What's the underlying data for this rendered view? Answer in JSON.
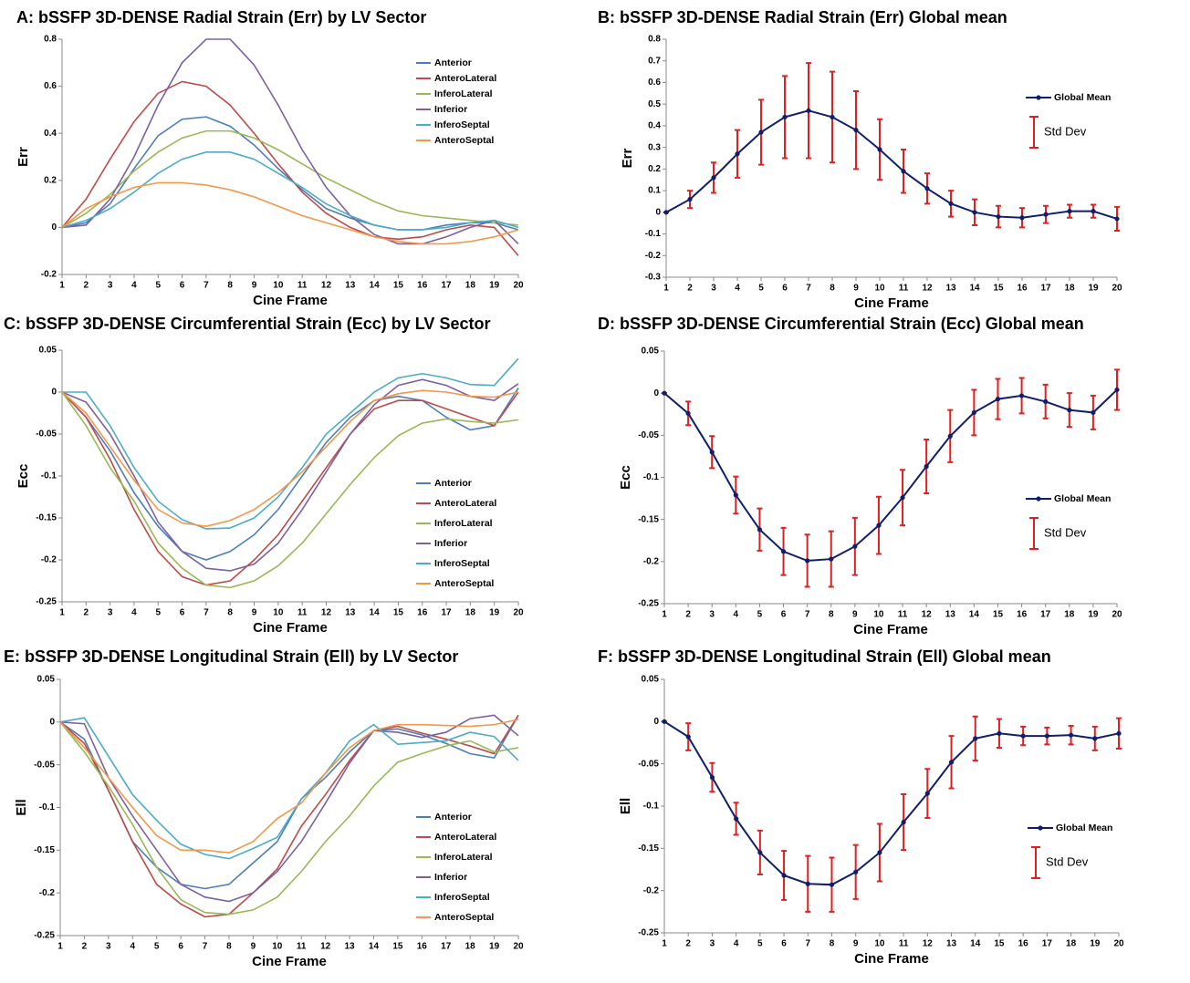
{
  "chart_data": [
    {
      "type": "line",
      "title": "A: bSSFP 3D-DENSE Radial Strain (Err) by LV Sector",
      "xlabel": "Cine Frame",
      "ylabel": "Err",
      "x": [
        1,
        2,
        3,
        4,
        5,
        6,
        7,
        8,
        9,
        10,
        11,
        12,
        13,
        14,
        15,
        16,
        17,
        18,
        19,
        20
      ],
      "xlim": [
        1,
        20
      ],
      "xticks": [
        1,
        2,
        3,
        4,
        5,
        6,
        7,
        8,
        9,
        10,
        11,
        12,
        13,
        14,
        15,
        16,
        17,
        18,
        19,
        20
      ],
      "ylim": [
        -0.2,
        0.8
      ],
      "yticks": [
        -0.2,
        0,
        0.2,
        0.4,
        0.6,
        0.8
      ],
      "grid": false,
      "legend": "upper right",
      "series": [
        {
          "name": "Anterior",
          "color": "#4a7ebb",
          "values": [
            0,
            0.02,
            0.1,
            0.25,
            0.39,
            0.46,
            0.47,
            0.43,
            0.35,
            0.25,
            0.16,
            0.08,
            0.04,
            0.01,
            -0.01,
            -0.01,
            0.01,
            0.02,
            0.02,
            -0.01
          ]
        },
        {
          "name": "AnteroLateral",
          "color": "#be4b48",
          "values": [
            0,
            0.12,
            0.29,
            0.45,
            0.57,
            0.62,
            0.6,
            0.52,
            0.4,
            0.27,
            0.15,
            0.06,
            0.0,
            -0.04,
            -0.05,
            -0.04,
            -0.01,
            0.01,
            0.0,
            -0.12
          ]
        },
        {
          "name": "InferoLateral",
          "color": "#98b954",
          "values": [
            0,
            0.06,
            0.14,
            0.24,
            0.32,
            0.38,
            0.41,
            0.41,
            0.38,
            0.33,
            0.27,
            0.21,
            0.16,
            0.11,
            0.07,
            0.05,
            0.04,
            0.03,
            0.02,
            0.01
          ]
        },
        {
          "name": "Inferior",
          "color": "#7d60a0",
          "values": [
            0,
            0.01,
            0.12,
            0.3,
            0.52,
            0.7,
            0.8,
            0.8,
            0.69,
            0.52,
            0.33,
            0.17,
            0.05,
            -0.03,
            -0.07,
            -0.07,
            -0.04,
            0.0,
            0.03,
            -0.07
          ]
        },
        {
          "name": "InferoSeptal",
          "color": "#4bacc6",
          "values": [
            0,
            0.03,
            0.08,
            0.15,
            0.23,
            0.29,
            0.32,
            0.32,
            0.29,
            0.23,
            0.17,
            0.1,
            0.05,
            0.01,
            -0.01,
            -0.01,
            0.0,
            0.02,
            0.03,
            0.0
          ]
        },
        {
          "name": "AnteroSeptal",
          "color": "#f79646",
          "values": [
            0,
            0.08,
            0.13,
            0.17,
            0.19,
            0.19,
            0.18,
            0.16,
            0.13,
            0.09,
            0.05,
            0.02,
            -0.01,
            -0.04,
            -0.06,
            -0.07,
            -0.07,
            -0.06,
            -0.04,
            -0.01
          ]
        }
      ]
    },
    {
      "type": "errorline",
      "title": "B: bSSFP 3D-DENSE Radial Strain (Err) Global mean",
      "xlabel": "Cine Frame",
      "ylabel": "Err",
      "x": [
        1,
        2,
        3,
        4,
        5,
        6,
        7,
        8,
        9,
        10,
        11,
        12,
        13,
        14,
        15,
        16,
        17,
        18,
        19,
        20
      ],
      "xlim": [
        1,
        20
      ],
      "xticks": [
        1,
        2,
        3,
        4,
        5,
        6,
        7,
        8,
        9,
        10,
        11,
        12,
        13,
        14,
        15,
        16,
        17,
        18,
        19,
        20
      ],
      "ylim": [
        -0.3,
        0.8
      ],
      "yticks": [
        -0.3,
        -0.2,
        -0.1,
        0,
        0.1,
        0.2,
        0.3,
        0.4,
        0.5,
        0.6,
        0.7,
        0.8
      ],
      "grid": false,
      "legend": "upper right",
      "series": [
        {
          "name": "Global Mean",
          "color": "#0f1f6e",
          "error_name": "Std Dev",
          "error_color": "#e02020",
          "values": [
            0,
            0.06,
            0.16,
            0.27,
            0.37,
            0.44,
            0.47,
            0.44,
            0.38,
            0.29,
            0.19,
            0.11,
            0.04,
            0,
            -0.02,
            -0.025,
            -0.01,
            0.005,
            0.005,
            -0.03
          ],
          "errors": [
            0,
            0.04,
            0.07,
            0.11,
            0.15,
            0.19,
            0.22,
            0.21,
            0.18,
            0.14,
            0.1,
            0.07,
            0.06,
            0.06,
            0.05,
            0.045,
            0.04,
            0.03,
            0.03,
            0.055
          ]
        }
      ]
    },
    {
      "type": "line",
      "title": "C: bSSFP 3D-DENSE Circumferential Strain (Ecc) by LV Sector",
      "xlabel": "Cine Frame",
      "ylabel": "Ecc",
      "x": [
        1,
        2,
        3,
        4,
        5,
        6,
        7,
        8,
        9,
        10,
        11,
        12,
        13,
        14,
        15,
        16,
        17,
        18,
        19,
        20
      ],
      "xlim": [
        1,
        20
      ],
      "xticks": [
        1,
        2,
        3,
        4,
        5,
        6,
        7,
        8,
        9,
        10,
        11,
        12,
        13,
        14,
        15,
        16,
        17,
        18,
        19,
        20
      ],
      "ylim": [
        -0.25,
        0.05
      ],
      "yticks": [
        -0.25,
        -0.2,
        -0.15,
        -0.1,
        -0.05,
        0,
        0.05
      ],
      "grid": false,
      "legend": "lower right",
      "series": [
        {
          "name": "Anterior",
          "color": "#4a7ebb",
          "values": [
            0,
            -0.03,
            -0.07,
            -0.12,
            -0.16,
            -0.19,
            -0.2,
            -0.19,
            -0.17,
            -0.14,
            -0.1,
            -0.06,
            -0.03,
            -0.01,
            -0.005,
            -0.01,
            -0.03,
            -0.045,
            -0.04,
            0.005
          ]
        },
        {
          "name": "AnteroLateral",
          "color": "#be4b48",
          "values": [
            0,
            -0.03,
            -0.08,
            -0.14,
            -0.19,
            -0.22,
            -0.23,
            -0.225,
            -0.2,
            -0.17,
            -0.13,
            -0.09,
            -0.05,
            -0.02,
            -0.01,
            -0.01,
            -0.02,
            -0.03,
            -0.04,
            0
          ]
        },
        {
          "name": "InferoLateral",
          "color": "#98b954",
          "values": [
            0,
            -0.04,
            -0.09,
            -0.13,
            -0.18,
            -0.21,
            -0.23,
            -0.233,
            -0.225,
            -0.207,
            -0.18,
            -0.145,
            -0.11,
            -0.078,
            -0.052,
            -0.037,
            -0.032,
            -0.035,
            -0.037,
            -0.033
          ]
        },
        {
          "name": "Inferior",
          "color": "#7d60a0",
          "values": [
            0,
            -0.012,
            -0.05,
            -0.1,
            -0.155,
            -0.19,
            -0.21,
            -0.213,
            -0.205,
            -0.18,
            -0.14,
            -0.095,
            -0.05,
            -0.015,
            0.008,
            0.015,
            0.008,
            -0.005,
            -0.01,
            0.01
          ]
        },
        {
          "name": "InferoSeptal",
          "color": "#4bacc6",
          "values": [
            0,
            0,
            -0.04,
            -0.09,
            -0.13,
            -0.152,
            -0.163,
            -0.162,
            -0.15,
            -0.125,
            -0.09,
            -0.05,
            -0.025,
            0,
            0.017,
            0.022,
            0.017,
            0.009,
            0.008,
            0.04
          ]
        },
        {
          "name": "AnteroSeptal",
          "color": "#f79646",
          "values": [
            0,
            -0.025,
            -0.065,
            -0.105,
            -0.14,
            -0.156,
            -0.16,
            -0.153,
            -0.14,
            -0.12,
            -0.095,
            -0.065,
            -0.035,
            -0.01,
            -0.002,
            0.002,
            0,
            -0.005,
            -0.006,
            0
          ]
        }
      ]
    },
    {
      "type": "errorline",
      "title": "D: bSSFP 3D-DENSE Circumferential Strain (Ecc) Global mean",
      "xlabel": "Cine Frame",
      "ylabel": "Ecc",
      "x": [
        1,
        2,
        3,
        4,
        5,
        6,
        7,
        8,
        9,
        10,
        11,
        12,
        13,
        14,
        15,
        16,
        17,
        18,
        19,
        20
      ],
      "xlim": [
        1,
        20
      ],
      "xticks": [
        1,
        2,
        3,
        4,
        5,
        6,
        7,
        8,
        9,
        10,
        11,
        12,
        13,
        14,
        15,
        16,
        17,
        18,
        19,
        20
      ],
      "ylim": [
        -0.25,
        0.05
      ],
      "yticks": [
        -0.25,
        -0.2,
        -0.15,
        -0.1,
        -0.05,
        0,
        0.05
      ],
      "grid": false,
      "legend": "lower right",
      "series": [
        {
          "name": "Global Mean",
          "color": "#0f1f6e",
          "error_name": "Std Dev",
          "error_color": "#e02020",
          "values": [
            0,
            -0.024,
            -0.07,
            -0.121,
            -0.162,
            -0.188,
            -0.199,
            -0.197,
            -0.182,
            -0.157,
            -0.124,
            -0.087,
            -0.051,
            -0.023,
            -0.007,
            -0.003,
            -0.01,
            -0.02,
            -0.023,
            0.004
          ],
          "errors": [
            0,
            0.014,
            0.019,
            0.022,
            0.025,
            0.028,
            0.031,
            0.033,
            0.034,
            0.034,
            0.033,
            0.032,
            0.031,
            0.027,
            0.024,
            0.021,
            0.02,
            0.02,
            0.02,
            0.024
          ]
        }
      ]
    },
    {
      "type": "line",
      "title": "E: bSSFP 3D-DENSE Longitudinal Strain (Ell) by LV Sector",
      "xlabel": "Cine Frame",
      "ylabel": "Ell",
      "x": [
        1,
        2,
        3,
        4,
        5,
        6,
        7,
        8,
        9,
        10,
        11,
        12,
        13,
        14,
        15,
        16,
        17,
        18,
        19,
        20
      ],
      "xlim": [
        1,
        20
      ],
      "xticks": [
        1,
        2,
        3,
        4,
        5,
        6,
        7,
        8,
        9,
        10,
        11,
        12,
        13,
        14,
        15,
        16,
        17,
        18,
        19,
        20
      ],
      "ylim": [
        -0.25,
        0.05
      ],
      "yticks": [
        -0.25,
        -0.2,
        -0.15,
        -0.1,
        -0.05,
        0,
        0.05
      ],
      "grid": false,
      "legend": "lower right",
      "series": [
        {
          "name": "Anterior",
          "color": "#4a7ebb",
          "values": [
            0,
            -0.02,
            -0.08,
            -0.14,
            -0.17,
            -0.19,
            -0.195,
            -0.19,
            -0.165,
            -0.14,
            -0.09,
            -0.065,
            -0.035,
            -0.01,
            -0.008,
            -0.015,
            -0.025,
            -0.037,
            -0.042,
            0.008
          ]
        },
        {
          "name": "AnteroLateral",
          "color": "#be4b48",
          "values": [
            0,
            -0.025,
            -0.08,
            -0.14,
            -0.19,
            -0.213,
            -0.228,
            -0.225,
            -0.2,
            -0.172,
            -0.122,
            -0.085,
            -0.045,
            -0.01,
            -0.005,
            -0.013,
            -0.02,
            -0.028,
            -0.037,
            0.008
          ]
        },
        {
          "name": "InferoLateral",
          "color": "#98b954",
          "values": [
            0,
            -0.035,
            -0.075,
            -0.12,
            -0.17,
            -0.208,
            -0.223,
            -0.225,
            -0.22,
            -0.205,
            -0.175,
            -0.14,
            -0.11,
            -0.075,
            -0.047,
            -0.037,
            -0.028,
            -0.022,
            -0.035,
            -0.03
          ]
        },
        {
          "name": "Inferior",
          "color": "#7d60a0",
          "values": [
            0,
            -0.002,
            -0.065,
            -0.11,
            -0.15,
            -0.19,
            -0.205,
            -0.21,
            -0.2,
            -0.175,
            -0.14,
            -0.095,
            -0.048,
            -0.01,
            -0.012,
            -0.018,
            -0.012,
            0.004,
            0.008,
            -0.016
          ]
        },
        {
          "name": "InferoSeptal",
          "color": "#4bacc6",
          "values": [
            0,
            0.005,
            -0.04,
            -0.085,
            -0.115,
            -0.143,
            -0.155,
            -0.16,
            -0.148,
            -0.135,
            -0.09,
            -0.06,
            -0.022,
            -0.003,
            -0.026,
            -0.024,
            -0.022,
            -0.012,
            -0.017,
            -0.045
          ]
        },
        {
          "name": "AnteroSeptal",
          "color": "#f79646",
          "values": [
            0,
            -0.03,
            -0.065,
            -0.1,
            -0.133,
            -0.15,
            -0.15,
            -0.153,
            -0.14,
            -0.113,
            -0.095,
            -0.06,
            -0.03,
            -0.01,
            -0.003,
            -0.003,
            -0.004,
            -0.005,
            -0.003,
            0.003
          ]
        }
      ]
    },
    {
      "type": "errorline",
      "title": "F: bSSFP 3D-DENSE Longitudinal Strain (Ell) Global mean",
      "xlabel": "Cine Frame",
      "ylabel": "Ell",
      "x": [
        1,
        2,
        3,
        4,
        5,
        6,
        7,
        8,
        9,
        10,
        11,
        12,
        13,
        14,
        15,
        16,
        17,
        18,
        19,
        20
      ],
      "xlim": [
        1,
        20
      ],
      "xticks": [
        1,
        2,
        3,
        4,
        5,
        6,
        7,
        8,
        9,
        10,
        11,
        12,
        13,
        14,
        15,
        16,
        17,
        18,
        19,
        20
      ],
      "ylim": [
        -0.25,
        0.05
      ],
      "yticks": [
        -0.25,
        -0.2,
        -0.15,
        -0.1,
        -0.05,
        0,
        0.05
      ],
      "grid": false,
      "legend": "lower right",
      "series": [
        {
          "name": "Global Mean",
          "color": "#0f1f6e",
          "error_name": "Std Dev",
          "error_color": "#e02020",
          "values": [
            0,
            -0.018,
            -0.066,
            -0.115,
            -0.155,
            -0.182,
            -0.192,
            -0.193,
            -0.178,
            -0.155,
            -0.119,
            -0.085,
            -0.048,
            -0.02,
            -0.014,
            -0.017,
            -0.017,
            -0.016,
            -0.02,
            -0.014
          ],
          "errors": [
            0,
            0.016,
            0.017,
            0.019,
            0.026,
            0.029,
            0.033,
            0.032,
            0.032,
            0.034,
            0.033,
            0.029,
            0.031,
            0.026,
            0.017,
            0.011,
            0.01,
            0.011,
            0.014,
            0.018
          ]
        }
      ]
    }
  ]
}
